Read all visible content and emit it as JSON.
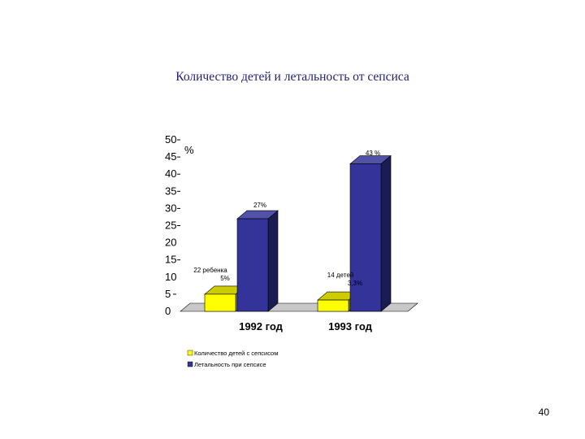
{
  "slide": {
    "title": "Количество детей и летальность от сепсиса",
    "page_number": "40"
  },
  "chart_data": {
    "type": "bar",
    "title": "",
    "ylabel": "%",
    "xlabel": "",
    "categories": [
      "1992 год",
      "1993 год"
    ],
    "ylim": [
      0,
      50
    ],
    "yticks": [
      0,
      5,
      10,
      15,
      20,
      25,
      30,
      35,
      40,
      45,
      50
    ],
    "series": [
      {
        "name": "Количество детей с сепсисом",
        "values": [
          5,
          3.3
        ],
        "labels": [
          "22 ребенка\n5%",
          "14 детей\n3,3%"
        ],
        "color": "#ffff00"
      },
      {
        "name": "Летальность при сепсисе",
        "values": [
          27,
          43
        ],
        "labels": [
          "27%",
          "43 %"
        ],
        "color": "#333399"
      }
    ],
    "legend_position": "bottom-left",
    "grid": false
  }
}
